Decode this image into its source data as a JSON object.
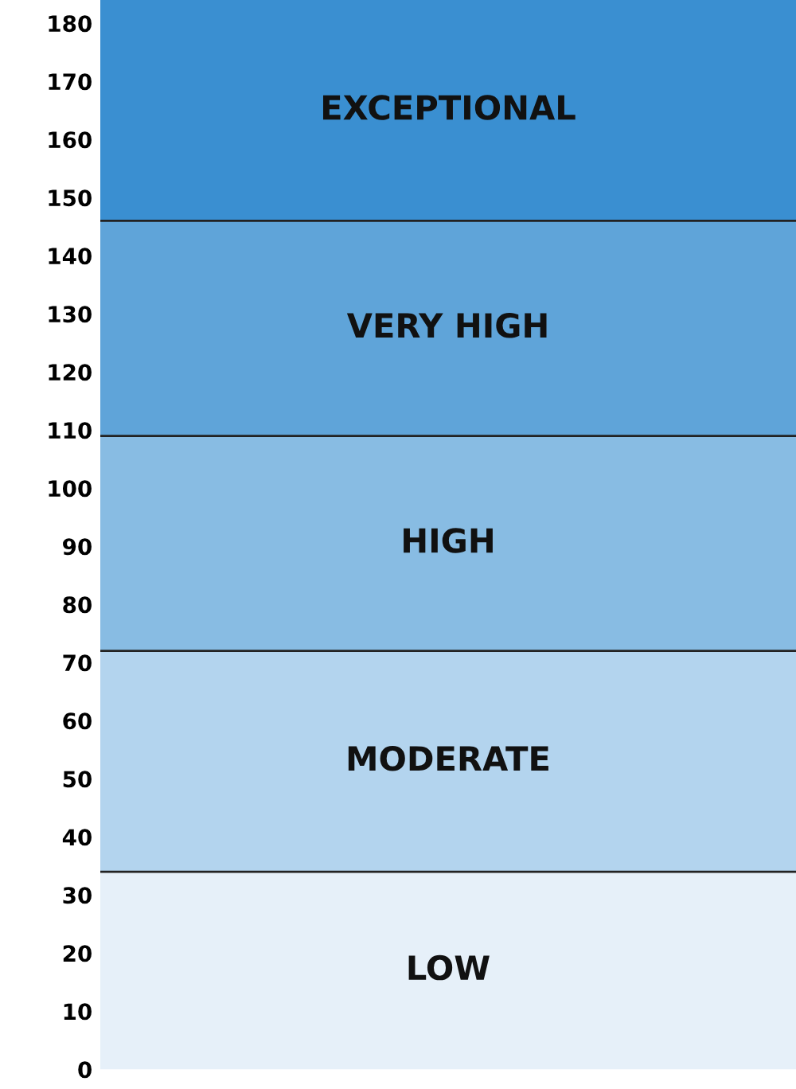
{
  "chart_data": {
    "type": "bar",
    "stacked": true,
    "categories": [
      null
    ],
    "ylim": [
      0,
      184
    ],
    "yticks": [
      0,
      10,
      20,
      30,
      40,
      50,
      60,
      70,
      80,
      90,
      100,
      110,
      120,
      130,
      140,
      150,
      160,
      170,
      180
    ],
    "series": [
      {
        "name": "LOW",
        "color": "#e6f0f9",
        "values": [
          34
        ]
      },
      {
        "name": "MODERATE",
        "color": "#b3d4ee",
        "values": [
          38
        ]
      },
      {
        "name": "HIGH",
        "color": "#88bce3",
        "values": [
          37
        ]
      },
      {
        "name": "VERY HIGH",
        "color": "#5fa4d9",
        "values": [
          37
        ]
      },
      {
        "name": "EXCEPTIONAL",
        "color": "#3a8fd1",
        "values": [
          38
        ]
      }
    ]
  }
}
